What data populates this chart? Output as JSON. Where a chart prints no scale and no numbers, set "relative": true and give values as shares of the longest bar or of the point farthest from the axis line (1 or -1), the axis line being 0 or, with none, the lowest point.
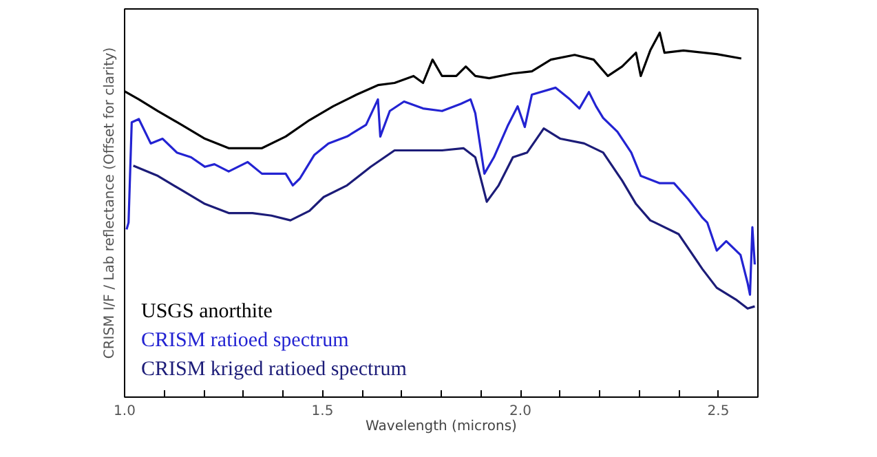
{
  "chart_data": {
    "type": "line",
    "relative": true,
    "xlabel": "Wavelength (microns)",
    "ylabel": "CRISM I/F / Lab reflectance (Offset for clarity)",
    "xlim": [
      1.0,
      2.6
    ],
    "xticks": [
      {
        "value": 1.0,
        "label": "1.0"
      },
      {
        "value": 1.1,
        "label": null
      },
      {
        "value": 1.2,
        "label": null
      },
      {
        "value": 1.3,
        "label": null
      },
      {
        "value": 1.4,
        "label": null
      },
      {
        "value": 1.5,
        "label": "1.5"
      },
      {
        "value": 1.6,
        "label": null
      },
      {
        "value": 1.7,
        "label": null
      },
      {
        "value": 1.8,
        "label": null
      },
      {
        "value": 1.9,
        "label": null
      },
      {
        "value": 2.0,
        "label": "2.0"
      },
      {
        "value": 2.1,
        "label": null
      },
      {
        "value": 2.2,
        "label": null
      },
      {
        "value": 2.3,
        "label": null
      },
      {
        "value": 2.4,
        "label": null
      },
      {
        "value": 2.5,
        "label": "2.5"
      }
    ],
    "tick_labels": "x",
    "grid": false,
    "legend": "bottom left",
    "line_style": "solid",
    "marker": "none",
    "series": [
      {
        "name": "USGS anorthite",
        "color": "#000000",
        "x": [
          1.0,
          1.036,
          1.084,
          1.144,
          1.203,
          1.263,
          1.347,
          1.407,
          1.467,
          1.527,
          1.586,
          1.64,
          1.682,
          1.73,
          1.754,
          1.778,
          1.802,
          1.838,
          1.862,
          1.886,
          1.921,
          1.981,
          2.029,
          2.077,
          2.137,
          2.185,
          2.221,
          2.257,
          2.292,
          2.304,
          2.328,
          2.352,
          2.364,
          2.412,
          2.496,
          2.558
        ],
        "values": [
          0.839,
          0.817,
          0.785,
          0.747,
          0.709,
          0.683,
          0.683,
          0.715,
          0.76,
          0.798,
          0.83,
          0.856,
          0.862,
          0.881,
          0.862,
          0.926,
          0.881,
          0.881,
          0.907,
          0.881,
          0.875,
          0.888,
          0.894,
          0.926,
          0.939,
          0.926,
          0.881,
          0.907,
          0.945,
          0.881,
          0.951,
          1.0,
          0.945,
          0.951,
          0.941,
          0.929
        ]
      },
      {
        "name": "CRISM ratioed spectrum",
        "color": "#2323d2",
        "x": [
          1.005,
          1.01,
          1.018,
          1.036,
          1.066,
          1.096,
          1.132,
          1.168,
          1.203,
          1.227,
          1.263,
          1.311,
          1.347,
          1.407,
          1.425,
          1.443,
          1.479,
          1.515,
          1.562,
          1.61,
          1.64,
          1.646,
          1.67,
          1.706,
          1.754,
          1.802,
          1.85,
          1.874,
          1.886,
          1.909,
          1.933,
          1.969,
          1.993,
          2.011,
          2.029,
          2.089,
          2.125,
          2.149,
          2.173,
          2.191,
          2.209,
          2.245,
          2.28,
          2.304,
          2.352,
          2.388,
          2.424,
          2.46,
          2.472,
          2.496,
          2.52,
          2.556,
          2.574,
          2.58,
          2.586,
          2.592
        ],
        "values": [
          0.46,
          0.479,
          0.754,
          0.763,
          0.696,
          0.709,
          0.671,
          0.658,
          0.632,
          0.639,
          0.619,
          0.645,
          0.613,
          0.613,
          0.581,
          0.6,
          0.664,
          0.696,
          0.715,
          0.747,
          0.817,
          0.715,
          0.785,
          0.811,
          0.792,
          0.785,
          0.805,
          0.817,
          0.779,
          0.613,
          0.658,
          0.747,
          0.798,
          0.741,
          0.83,
          0.849,
          0.817,
          0.792,
          0.837,
          0.798,
          0.766,
          0.728,
          0.671,
          0.607,
          0.587,
          0.587,
          0.543,
          0.492,
          0.479,
          0.402,
          0.428,
          0.39,
          0.313,
          0.281,
          0.466,
          0.364
        ]
      },
      {
        "name": "CRISM kriged ratioed spectrum",
        "color": "#1c1c78",
        "x": [
          1.022,
          1.084,
          1.144,
          1.203,
          1.263,
          1.323,
          1.371,
          1.419,
          1.467,
          1.503,
          1.562,
          1.622,
          1.682,
          1.742,
          1.802,
          1.856,
          1.886,
          1.915,
          1.945,
          1.981,
          2.017,
          2.059,
          2.101,
          2.161,
          2.209,
          2.257,
          2.292,
          2.328,
          2.34,
          2.4,
          2.46,
          2.496,
          2.544,
          2.574,
          2.592
        ],
        "values": [
          0.635,
          0.607,
          0.568,
          0.53,
          0.505,
          0.505,
          0.498,
          0.485,
          0.511,
          0.549,
          0.581,
          0.632,
          0.677,
          0.677,
          0.677,
          0.683,
          0.658,
          0.536,
          0.581,
          0.658,
          0.671,
          0.737,
          0.709,
          0.696,
          0.671,
          0.594,
          0.53,
          0.485,
          0.479,
          0.447,
          0.351,
          0.3,
          0.268,
          0.243,
          0.249
        ]
      }
    ]
  }
}
